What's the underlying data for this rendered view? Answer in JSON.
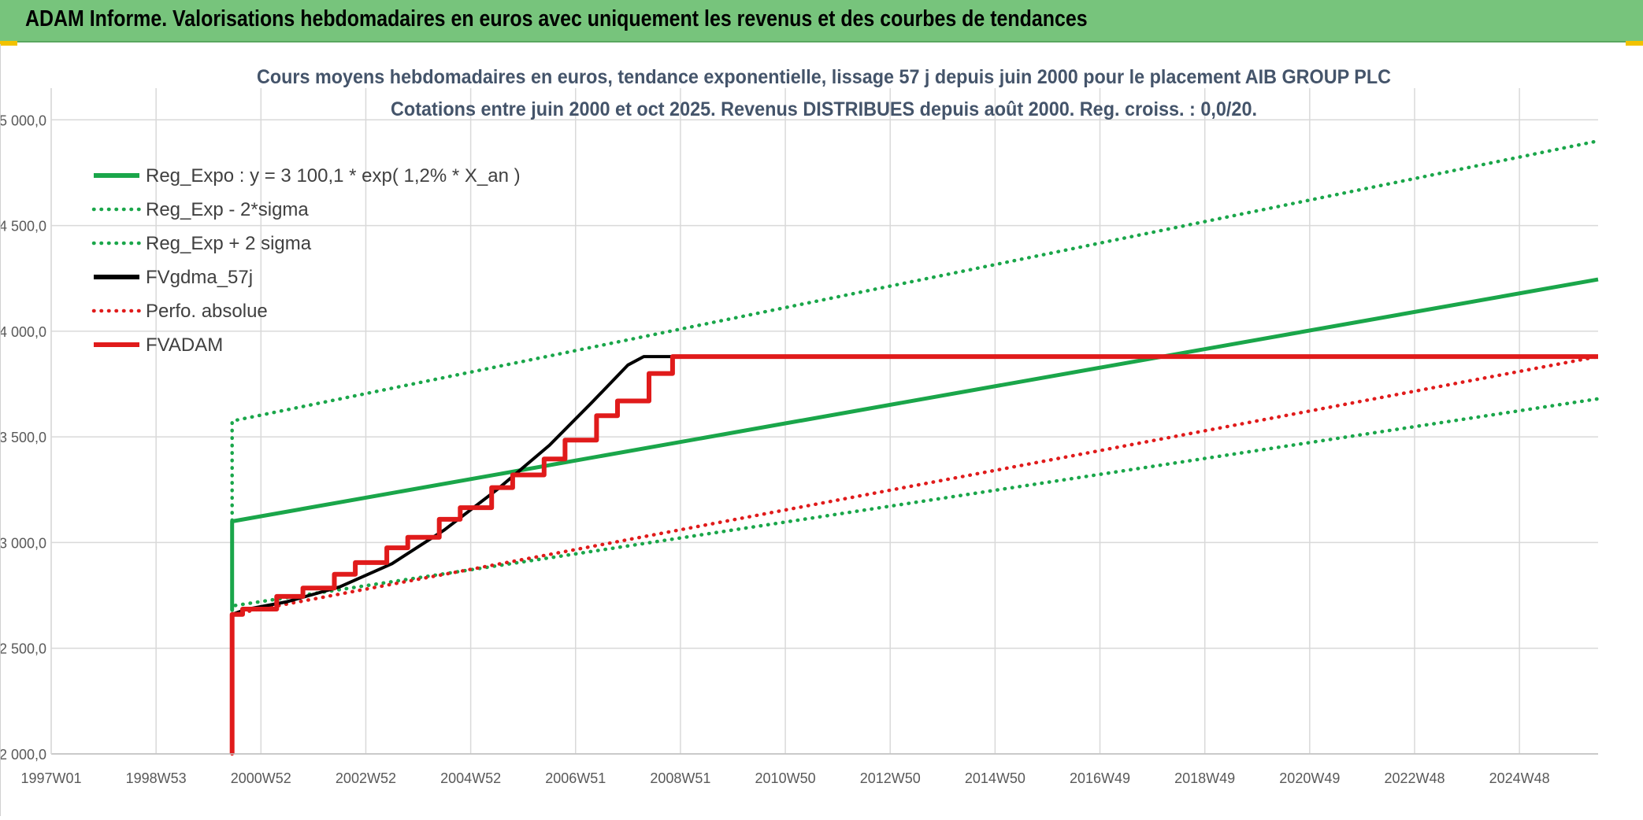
{
  "header": {
    "title": "ADAM Informe. Valorisations hebdomadaires en euros avec uniquement les revenus et des courbes de tendances",
    "background": "#77c47c",
    "corner_accent": "#f2c200"
  },
  "chart_data": {
    "type": "line",
    "title": "Cours moyens hebdomadaires en euros, tendance exponentielle, lissage 57 j depuis juin 2000 pour le placement AIB GROUP PLC",
    "subtitle": "Cotations entre juin 2000 et oct 2025. Revenus DISTRIBUES depuis août 2000. Reg. croiss. : 0,0/20.",
    "xlabel": "",
    "ylabel": "",
    "x_ticks": [
      "1997W01",
      "1998W53",
      "2000W52",
      "2002W52",
      "2004W52",
      "2006W51",
      "2008W51",
      "2010W50",
      "2012W50",
      "2014W50",
      "2016W49",
      "2018W49",
      "2020W49",
      "2022W48",
      "2024W48"
    ],
    "x_tick_years": [
      1997.0,
      1999.0,
      2001.0,
      2003.0,
      2005.0,
      2007.0,
      2009.0,
      2011.0,
      2013.0,
      2015.0,
      2017.0,
      2019.0,
      2021.0,
      2023.0,
      2025.0
    ],
    "xlim": [
      1997.0,
      2026.5
    ],
    "y_ticks": [
      "2 000,0",
      "2 500,0",
      "3 000,0",
      "3 500,0",
      "4 000,0",
      "4 500,0",
      "5 000,0"
    ],
    "y_tick_values": [
      2000,
      2500,
      3000,
      3500,
      4000,
      4500,
      5000
    ],
    "ylim": [
      2000,
      5150
    ],
    "grid": true,
    "legend_position": "top-left",
    "series": [
      {
        "name": "Reg_Expo : y = 3 100,1 * exp( 1,2% *  X_an )",
        "color": "#1aa64a",
        "style": "solid",
        "points": [
          [
            2000.45,
            2680
          ],
          [
            2000.45,
            3100.1
          ],
          [
            2026.5,
            4245
          ]
        ]
      },
      {
        "name": "Reg_Exp - 2*sigma",
        "color": "#1aa64a",
        "style": "dotted",
        "points": [
          [
            2000.45,
            2680
          ],
          [
            2000.45,
            2700
          ],
          [
            2026.5,
            3680
          ]
        ]
      },
      {
        "name": "Reg_Exp + 2 sigma",
        "color": "#1aa64a",
        "style": "dotted",
        "points": [
          [
            2000.45,
            2680
          ],
          [
            2000.45,
            3575
          ],
          [
            2026.5,
            4900
          ]
        ]
      },
      {
        "name": "FVgdma_57j",
        "color": "#000000",
        "style": "solid",
        "points": [
          [
            2000.45,
            2660
          ],
          [
            2000.7,
            2683
          ],
          [
            2001.5,
            2720
          ],
          [
            2002.5,
            2790
          ],
          [
            2003.5,
            2900
          ],
          [
            2004.5,
            3060
          ],
          [
            2005.5,
            3250
          ],
          [
            2006.5,
            3460
          ],
          [
            2007.3,
            3660
          ],
          [
            2008.0,
            3840
          ],
          [
            2008.3,
            3880
          ],
          [
            2026.5,
            3880
          ]
        ]
      },
      {
        "name": "Perfo. absolue",
        "color": "#e01b1b",
        "style": "dotted",
        "points": [
          [
            2000.45,
            2000
          ],
          [
            2000.45,
            2660
          ],
          [
            2026.5,
            3880
          ]
        ]
      },
      {
        "name": "FVADAM",
        "color": "#e01b1b",
        "style": "solid",
        "points": [
          [
            2000.45,
            2000
          ],
          [
            2000.45,
            2660
          ],
          [
            2000.65,
            2660
          ],
          [
            2000.65,
            2685
          ],
          [
            2001.3,
            2685
          ],
          [
            2001.3,
            2745
          ],
          [
            2001.8,
            2745
          ],
          [
            2001.8,
            2785
          ],
          [
            2002.4,
            2785
          ],
          [
            2002.4,
            2850
          ],
          [
            2002.8,
            2850
          ],
          [
            2002.8,
            2905
          ],
          [
            2003.4,
            2905
          ],
          [
            2003.4,
            2975
          ],
          [
            2003.8,
            2975
          ],
          [
            2003.8,
            3025
          ],
          [
            2004.4,
            3025
          ],
          [
            2004.4,
            3110
          ],
          [
            2004.8,
            3110
          ],
          [
            2004.8,
            3165
          ],
          [
            2005.4,
            3165
          ],
          [
            2005.4,
            3260
          ],
          [
            2005.8,
            3260
          ],
          [
            2005.8,
            3320
          ],
          [
            2006.4,
            3320
          ],
          [
            2006.4,
            3395
          ],
          [
            2006.8,
            3395
          ],
          [
            2006.8,
            3485
          ],
          [
            2007.4,
            3485
          ],
          [
            2007.4,
            3600
          ],
          [
            2007.8,
            3600
          ],
          [
            2007.8,
            3670
          ],
          [
            2008.4,
            3670
          ],
          [
            2008.4,
            3800
          ],
          [
            2008.85,
            3800
          ],
          [
            2008.85,
            3880
          ],
          [
            2026.5,
            3880
          ]
        ]
      }
    ]
  }
}
